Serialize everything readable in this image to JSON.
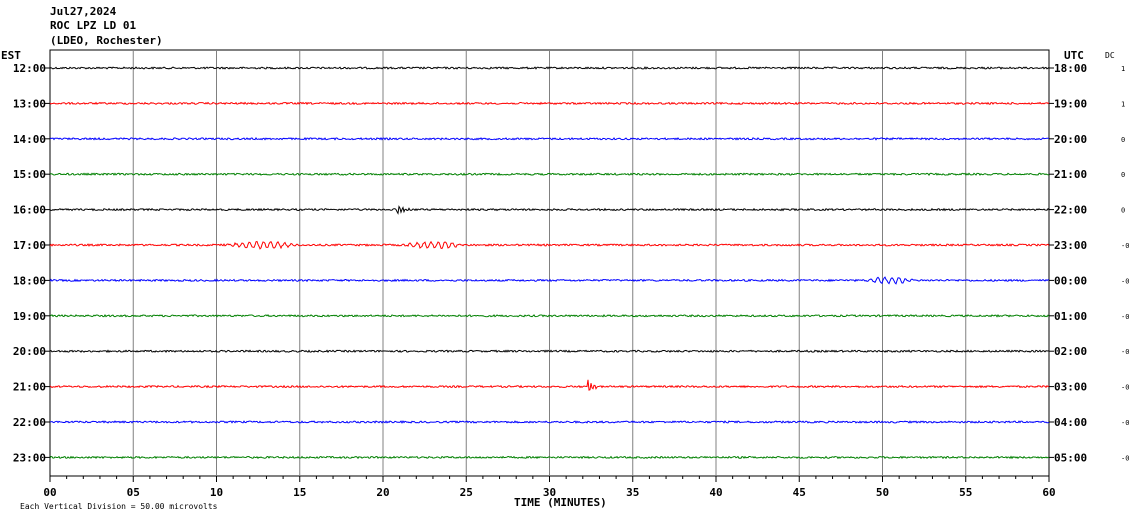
{
  "header": {
    "date": "Jul27,2024",
    "station": "ROC LPZ LD 01",
    "network": "(LDEO, Rochester)"
  },
  "chart_data": {
    "type": "line",
    "title": "",
    "xlabel": "TIME (MINUTES)",
    "xlim": [
      0,
      60
    ],
    "x_ticks": [
      "00",
      "05",
      "10",
      "15",
      "20",
      "25",
      "30",
      "35",
      "40",
      "45",
      "50",
      "55",
      "60"
    ],
    "left_axis_label": "EST",
    "right_axis_label": "UTC",
    "dc_label": "DC",
    "rows": [
      {
        "est": "12:00",
        "utc": "18:00",
        "dc": "1",
        "color": "#000000"
      },
      {
        "est": "13:00",
        "utc": "19:00",
        "dc": "1",
        "color": "#ff0000"
      },
      {
        "est": "14:00",
        "utc": "20:00",
        "dc": "0",
        "color": "#0000ff"
      },
      {
        "est": "15:00",
        "utc": "21:00",
        "dc": "0",
        "color": "#008000"
      },
      {
        "est": "16:00",
        "utc": "22:00",
        "dc": "0",
        "color": "#000000"
      },
      {
        "est": "17:00",
        "utc": "23:00",
        "dc": "-0",
        "color": "#ff0000"
      },
      {
        "est": "18:00",
        "utc": "00:00",
        "dc": "-0",
        "color": "#0000ff"
      },
      {
        "est": "19:00",
        "utc": "01:00",
        "dc": "-0",
        "color": "#008000"
      },
      {
        "est": "20:00",
        "utc": "02:00",
        "dc": "-0",
        "color": "#000000"
      },
      {
        "est": "21:00",
        "utc": "03:00",
        "dc": "-0",
        "color": "#ff0000"
      },
      {
        "est": "22:00",
        "utc": "04:00",
        "dc": "-0",
        "color": "#0000ff"
      },
      {
        "est": "23:00",
        "utc": "05:00",
        "dc": "-0",
        "color": "#008000"
      }
    ],
    "events": [
      {
        "row": 4,
        "start_min": 20.8,
        "end_min": 22.2,
        "type": "spike"
      },
      {
        "row": 5,
        "start_min": 10.5,
        "end_min": 15.0,
        "type": "wave"
      },
      {
        "row": 5,
        "start_min": 21.0,
        "end_min": 25.0,
        "type": "wave"
      },
      {
        "row": 6,
        "start_min": 49.0,
        "end_min": 52.0,
        "type": "wave"
      },
      {
        "row": 9,
        "start_min": 32.3,
        "end_min": 33.6,
        "type": "spike"
      }
    ],
    "grid": true,
    "vertical_division": "Each Vertical Division =   50.00 microvolts"
  }
}
